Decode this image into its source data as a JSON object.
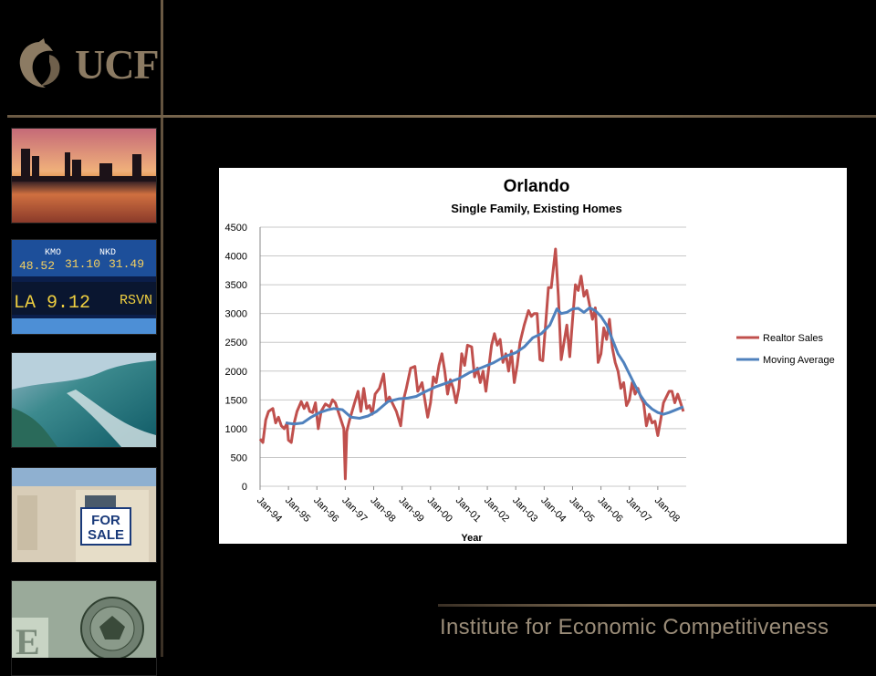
{
  "header": {
    "logo_text": "UCF"
  },
  "footer": {
    "institute": "Institute for Economic Competitiveness"
  },
  "sidebar_photos": [
    {
      "icon": "city-skyline-sunset-photo"
    },
    {
      "icon": "stock-ticker-board-photo",
      "ticker": [
        "48.52",
        "31.10",
        "31.49",
        "LA 9.12",
        "RSVN",
        "KMO",
        "NKD"
      ]
    },
    {
      "icon": "aerial-coastline-photo"
    },
    {
      "icon": "for-sale-sign-photo",
      "sign": "FOR SALE"
    },
    {
      "icon": "dollar-bill-seal-photo"
    }
  ],
  "chart_data": {
    "type": "line",
    "title": "Orlando",
    "subtitle": "Single Family, Existing Homes",
    "xlabel": "Year",
    "ylabel": "",
    "ylim": [
      0,
      4500
    ],
    "yticks": [
      0,
      500,
      1000,
      1500,
      2000,
      2500,
      3000,
      3500,
      4000,
      4500
    ],
    "xticks": [
      "Jan-94",
      "Jan-95",
      "Jan-96",
      "Jan-97",
      "Jan-98",
      "Jan-99",
      "Jan-00",
      "Jan-01",
      "Jan-02",
      "Jan-03",
      "Jan-04",
      "Jan-05",
      "Jan-06",
      "Jan-07",
      "Jan-08"
    ],
    "x_start": "1994-01",
    "legend_position": "right",
    "grid": "horizontal",
    "series": [
      {
        "name": "Realtor Sales",
        "color": "#c0504d",
        "points": [
          [
            1994.0,
            820
          ],
          [
            1994.1,
            760
          ],
          [
            1994.2,
            1150
          ],
          [
            1994.3,
            1300
          ],
          [
            1994.45,
            1350
          ],
          [
            1994.55,
            1100
          ],
          [
            1994.65,
            1200
          ],
          [
            1994.75,
            1050
          ],
          [
            1994.85,
            1000
          ],
          [
            1994.95,
            1100
          ],
          [
            1995.0,
            800
          ],
          [
            1995.1,
            760
          ],
          [
            1995.2,
            1100
          ],
          [
            1995.3,
            1300
          ],
          [
            1995.45,
            1470
          ],
          [
            1995.55,
            1350
          ],
          [
            1995.65,
            1450
          ],
          [
            1995.75,
            1300
          ],
          [
            1995.85,
            1280
          ],
          [
            1995.95,
            1450
          ],
          [
            1996.05,
            1000
          ],
          [
            1996.15,
            1300
          ],
          [
            1996.3,
            1430
          ],
          [
            1996.45,
            1380
          ],
          [
            1996.55,
            1500
          ],
          [
            1996.65,
            1450
          ],
          [
            1996.75,
            1300
          ],
          [
            1996.85,
            1150
          ],
          [
            1996.95,
            1000
          ],
          [
            1997.0,
            130
          ],
          [
            1997.05,
            950
          ],
          [
            1997.15,
            1150
          ],
          [
            1997.3,
            1400
          ],
          [
            1997.45,
            1650
          ],
          [
            1997.55,
            1300
          ],
          [
            1997.65,
            1700
          ],
          [
            1997.75,
            1350
          ],
          [
            1997.85,
            1400
          ],
          [
            1997.95,
            1250
          ],
          [
            1998.05,
            1600
          ],
          [
            1998.2,
            1700
          ],
          [
            1998.35,
            1950
          ],
          [
            1998.45,
            1450
          ],
          [
            1998.55,
            1550
          ],
          [
            1998.65,
            1450
          ],
          [
            1998.8,
            1300
          ],
          [
            1998.95,
            1050
          ],
          [
            1999.05,
            1500
          ],
          [
            1999.15,
            1700
          ],
          [
            1999.3,
            2050
          ],
          [
            1999.45,
            2080
          ],
          [
            1999.55,
            1650
          ],
          [
            1999.7,
            1800
          ],
          [
            1999.8,
            1500
          ],
          [
            1999.9,
            1200
          ],
          [
            2000.0,
            1450
          ],
          [
            2000.1,
            1900
          ],
          [
            2000.2,
            1800
          ],
          [
            2000.3,
            2100
          ],
          [
            2000.4,
            2300
          ],
          [
            2000.5,
            2000
          ],
          [
            2000.6,
            1600
          ],
          [
            2000.7,
            1850
          ],
          [
            2000.8,
            1700
          ],
          [
            2000.9,
            1450
          ],
          [
            2001.0,
            1700
          ],
          [
            2001.1,
            2300
          ],
          [
            2001.2,
            2100
          ],
          [
            2001.3,
            2450
          ],
          [
            2001.45,
            2420
          ],
          [
            2001.55,
            1900
          ],
          [
            2001.65,
            2050
          ],
          [
            2001.75,
            1800
          ],
          [
            2001.85,
            2000
          ],
          [
            2001.95,
            1650
          ],
          [
            2002.05,
            2050
          ],
          [
            2002.15,
            2450
          ],
          [
            2002.25,
            2650
          ],
          [
            2002.35,
            2450
          ],
          [
            2002.45,
            2550
          ],
          [
            2002.55,
            2150
          ],
          [
            2002.65,
            2300
          ],
          [
            2002.75,
            2000
          ],
          [
            2002.85,
            2350
          ],
          [
            2002.95,
            1800
          ],
          [
            2003.05,
            2100
          ],
          [
            2003.15,
            2500
          ],
          [
            2003.3,
            2800
          ],
          [
            2003.45,
            3050
          ],
          [
            2003.55,
            2950
          ],
          [
            2003.65,
            3000
          ],
          [
            2003.75,
            3000
          ],
          [
            2003.85,
            2200
          ],
          [
            2003.95,
            2180
          ],
          [
            2004.05,
            2800
          ],
          [
            2004.15,
            3450
          ],
          [
            2004.25,
            3450
          ],
          [
            2004.4,
            4120
          ],
          [
            2004.5,
            3300
          ],
          [
            2004.6,
            2200
          ],
          [
            2004.7,
            2500
          ],
          [
            2004.8,
            2800
          ],
          [
            2004.9,
            2250
          ],
          [
            2005.0,
            2900
          ],
          [
            2005.1,
            3500
          ],
          [
            2005.2,
            3400
          ],
          [
            2005.3,
            3650
          ],
          [
            2005.4,
            3300
          ],
          [
            2005.5,
            3400
          ],
          [
            2005.6,
            3150
          ],
          [
            2005.7,
            2900
          ],
          [
            2005.8,
            3100
          ],
          [
            2005.9,
            2150
          ],
          [
            2006.0,
            2300
          ],
          [
            2006.1,
            2750
          ],
          [
            2006.2,
            2550
          ],
          [
            2006.3,
            2900
          ],
          [
            2006.4,
            2400
          ],
          [
            2006.5,
            2150
          ],
          [
            2006.6,
            2000
          ],
          [
            2006.7,
            1700
          ],
          [
            2006.8,
            1800
          ],
          [
            2006.9,
            1400
          ],
          [
            2007.0,
            1500
          ],
          [
            2007.1,
            1800
          ],
          [
            2007.2,
            1600
          ],
          [
            2007.3,
            1700
          ],
          [
            2007.4,
            1550
          ],
          [
            2007.5,
            1450
          ],
          [
            2007.6,
            1050
          ],
          [
            2007.7,
            1250
          ],
          [
            2007.8,
            1100
          ],
          [
            2007.9,
            1130
          ],
          [
            2008.0,
            880
          ],
          [
            2008.1,
            1150
          ],
          [
            2008.2,
            1450
          ],
          [
            2008.3,
            1550
          ],
          [
            2008.4,
            1650
          ],
          [
            2008.5,
            1650
          ],
          [
            2008.6,
            1450
          ],
          [
            2008.7,
            1600
          ],
          [
            2008.8,
            1450
          ],
          [
            2008.9,
            1300
          ]
        ]
      },
      {
        "name": "Moving Average",
        "color": "#4f81bd",
        "points": [
          [
            1994.9,
            1100
          ],
          [
            1995.2,
            1080
          ],
          [
            1995.5,
            1100
          ],
          [
            1995.8,
            1200
          ],
          [
            1996.1,
            1280
          ],
          [
            1996.4,
            1330
          ],
          [
            1996.6,
            1350
          ],
          [
            1996.9,
            1330
          ],
          [
            1997.2,
            1200
          ],
          [
            1997.5,
            1180
          ],
          [
            1997.8,
            1220
          ],
          [
            1998.1,
            1300
          ],
          [
            1998.5,
            1470
          ],
          [
            1998.9,
            1520
          ],
          [
            1999.2,
            1530
          ],
          [
            1999.5,
            1560
          ],
          [
            1999.8,
            1640
          ],
          [
            2000.2,
            1730
          ],
          [
            2000.6,
            1800
          ],
          [
            2001.0,
            1870
          ],
          [
            2001.4,
            1980
          ],
          [
            2001.8,
            2060
          ],
          [
            2002.2,
            2140
          ],
          [
            2002.6,
            2250
          ],
          [
            2003.0,
            2320
          ],
          [
            2003.3,
            2420
          ],
          [
            2003.6,
            2580
          ],
          [
            2003.9,
            2650
          ],
          [
            2004.2,
            2800
          ],
          [
            2004.45,
            3080
          ],
          [
            2004.6,
            3000
          ],
          [
            2004.8,
            3020
          ],
          [
            2005.0,
            3080
          ],
          [
            2005.2,
            3090
          ],
          [
            2005.4,
            3020
          ],
          [
            2005.6,
            3100
          ],
          [
            2005.8,
            3050
          ],
          [
            2006.0,
            2950
          ],
          [
            2006.2,
            2800
          ],
          [
            2006.4,
            2550
          ],
          [
            2006.6,
            2300
          ],
          [
            2006.8,
            2150
          ],
          [
            2007.0,
            1950
          ],
          [
            2007.2,
            1750
          ],
          [
            2007.4,
            1570
          ],
          [
            2007.6,
            1430
          ],
          [
            2007.8,
            1340
          ],
          [
            2008.0,
            1280
          ],
          [
            2008.2,
            1250
          ],
          [
            2008.4,
            1280
          ],
          [
            2008.6,
            1320
          ],
          [
            2008.9,
            1380
          ]
        ]
      }
    ]
  }
}
